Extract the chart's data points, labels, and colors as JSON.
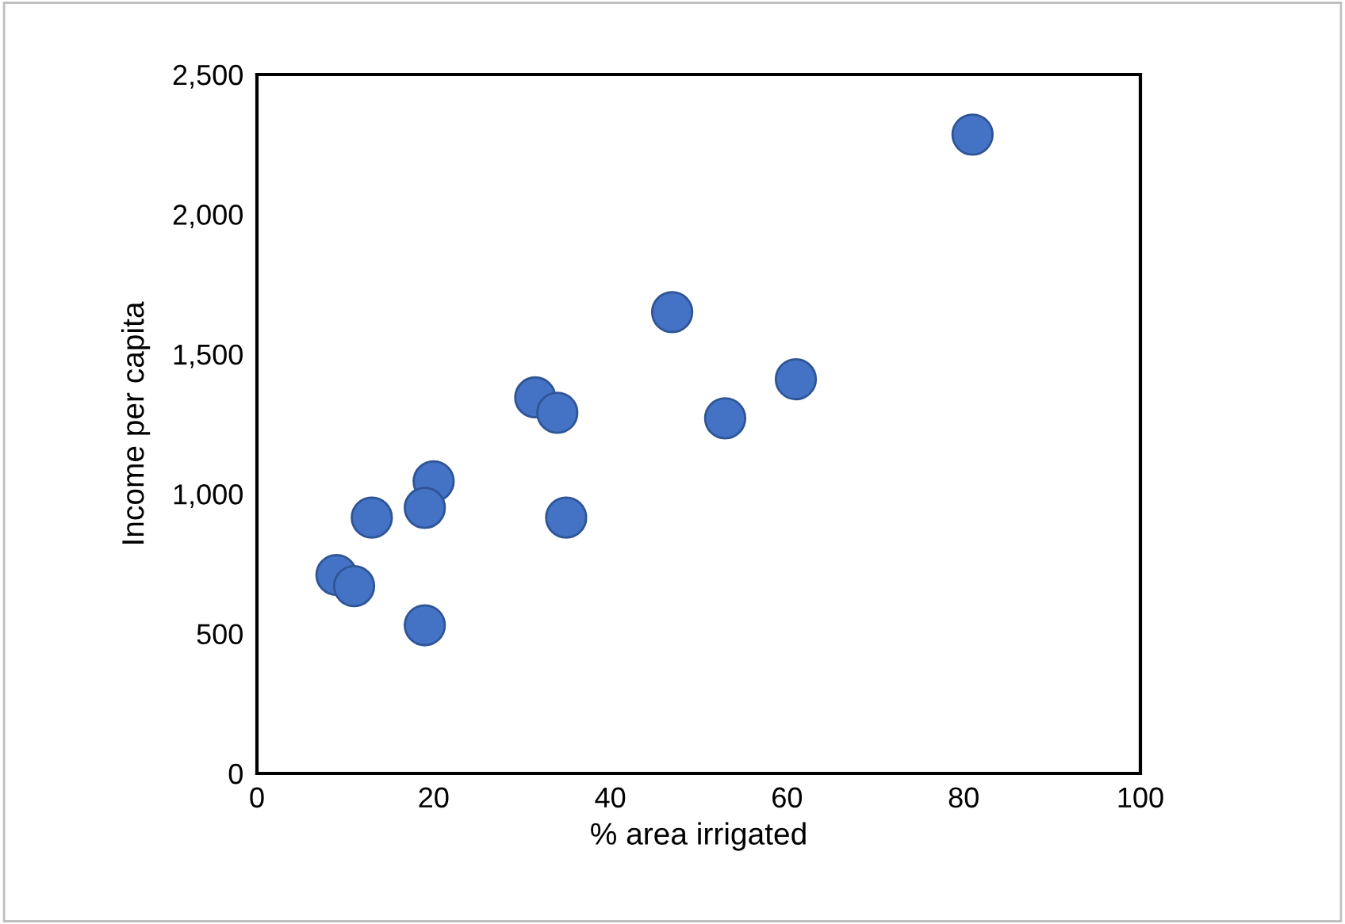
{
  "chart_data": {
    "type": "scatter",
    "xlabel": "% area irrigated",
    "ylabel": "Income per capita",
    "x": [
      81,
      47,
      31.5,
      34,
      53,
      61,
      20,
      19,
      13,
      35,
      9,
      11,
      19
    ],
    "values": [
      2285,
      1650,
      1345,
      1290,
      1270,
      1410,
      1045,
      950,
      915,
      915,
      710,
      670,
      530
    ],
    "color": "#4472c4",
    "marker": "circle",
    "grid": false,
    "legend": false,
    "xlim": [
      0,
      100
    ],
    "xticks": [
      0,
      20,
      40,
      60,
      80,
      100
    ],
    "ylim": [
      0,
      2500
    ],
    "yticks": [
      0,
      {
        "value": 500,
        "label": "500"
      },
      {
        "value": 1000,
        "label": "1,000"
      },
      {
        "value": 1500,
        "label": "1,500"
      },
      {
        "value": 2000,
        "label": "2,000"
      },
      {
        "value": 2500,
        "label": "2,500"
      }
    ]
  }
}
